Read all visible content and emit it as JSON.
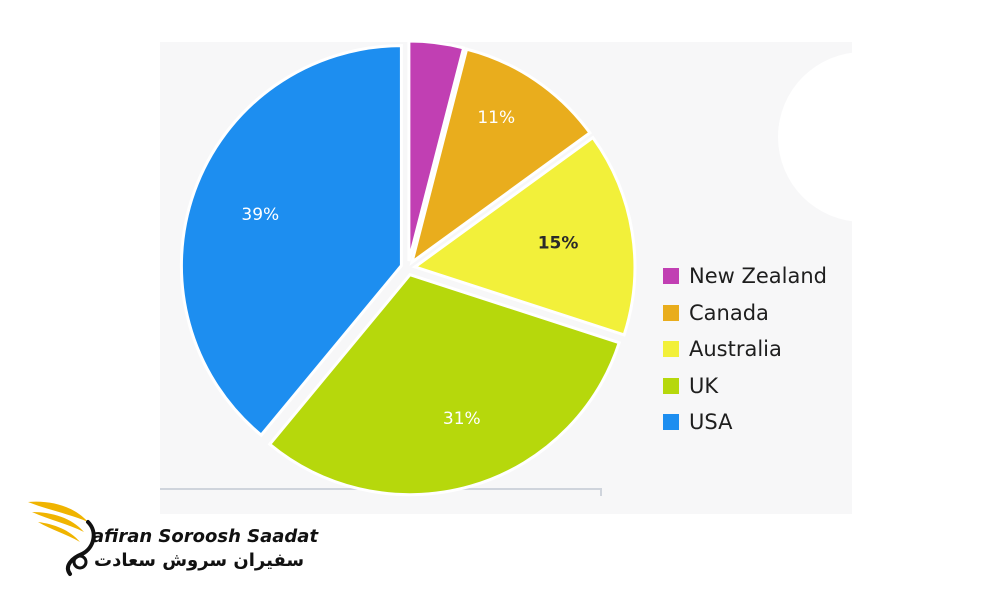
{
  "chart_data": {
    "type": "pie",
    "slices": [
      {
        "label": "New Zealand",
        "value": 4,
        "display": "4%",
        "color": "#c13fb3",
        "label_color": "#ffffff"
      },
      {
        "label": "Canada",
        "value": 11,
        "display": "11%",
        "color": "#e9ad1d",
        "label_color": "#ffffff"
      },
      {
        "label": "Australia",
        "value": 15,
        "display": "15%",
        "color": "#f2f03a",
        "label_color": "#2a2a2a"
      },
      {
        "label": "UK",
        "value": 31,
        "display": "31%",
        "color": "#b6d80c",
        "label_color": "#ffffff"
      },
      {
        "label": "USA",
        "value": 39,
        "display": "39%",
        "color": "#1d8ef0",
        "label_color": "#ffffff"
      }
    ],
    "start_angle": "12 o'clock",
    "direction": "clockwise",
    "exploded": true,
    "legend_position": "right"
  },
  "legend": {
    "items": [
      {
        "label": "New Zealand",
        "color": "#c13fb3"
      },
      {
        "label": "Canada",
        "color": "#e9ad1d"
      },
      {
        "label": "Australia",
        "color": "#f2f03a"
      },
      {
        "label": "UK",
        "color": "#b6d80c"
      },
      {
        "label": "USA",
        "color": "#1d8ef0"
      }
    ]
  },
  "watermark": {
    "brand_en": "afiran Soroosh Saadat",
    "brand_fa": "سفیران سروش سعادت",
    "logo_icon": "swan-wing-logo-icon",
    "logo_colors": {
      "gold": "#f0b400",
      "black": "#111111"
    }
  }
}
